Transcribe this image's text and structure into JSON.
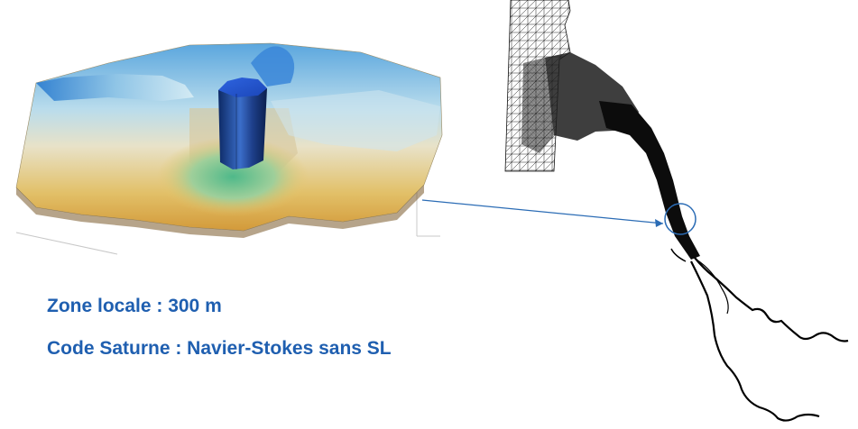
{
  "captions": {
    "zone": "Zone locale : 300 m",
    "code": "Code Saturne : Navier-Stokes sans SL"
  },
  "colors": {
    "caption_text": "#1f5fb0",
    "arrow": "#2b6cb5",
    "mesh_line": "#111111"
  },
  "figures": {
    "left": "3d-bathymetry-terrain-with-pier",
    "right": "estuary-triangular-mesh"
  }
}
